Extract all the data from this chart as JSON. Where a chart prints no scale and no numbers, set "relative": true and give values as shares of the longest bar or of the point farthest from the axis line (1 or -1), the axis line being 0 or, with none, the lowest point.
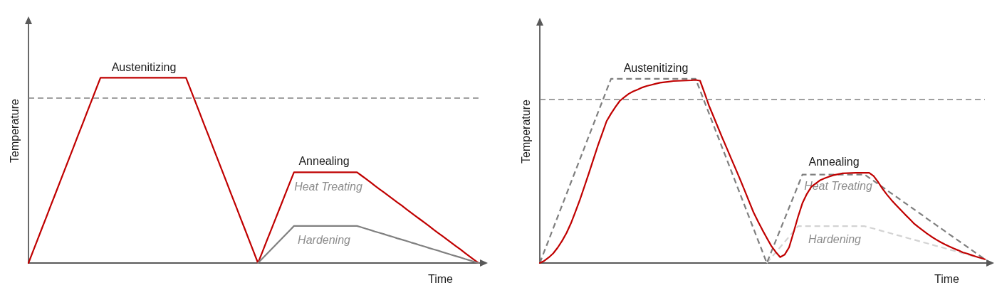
{
  "chart_data": [
    {
      "type": "line",
      "relative": true,
      "xlabel": "Time",
      "ylabel": "Temperature",
      "grid": false,
      "marker": "none",
      "categories": [
        null,
        null,
        null,
        null,
        null,
        null,
        null,
        null,
        null,
        null,
        null,
        null,
        null,
        null,
        null,
        null,
        null,
        null,
        null,
        null,
        null,
        null,
        null,
        null,
        null,
        null,
        null,
        null,
        null,
        null,
        null,
        null,
        null,
        null,
        null,
        null,
        null,
        null,
        null,
        null,
        null,
        null,
        null,
        null,
        null,
        null,
        null,
        null,
        null,
        null,
        null,
        null,
        null,
        null,
        null,
        null,
        null,
        null,
        null,
        null,
        null,
        null,
        null,
        null,
        null,
        null,
        null,
        null,
        null,
        null,
        null,
        null,
        null,
        null,
        null,
        null,
        null,
        null,
        null,
        null,
        null,
        null,
        null,
        null,
        null,
        null,
        null,
        null,
        null,
        null,
        null,
        null,
        null,
        null,
        null,
        null,
        null,
        null,
        null,
        null,
        null
      ],
      "series": [
        {
          "color": "#c00000",
          "values": [
            0,
            0.063,
            0.125,
            0.188,
            0.25,
            0.313,
            0.375,
            0.438,
            0.5,
            0.563,
            0.625,
            0.688,
            0.75,
            0.813,
            0.875,
            0.938,
            1,
            1,
            1,
            1,
            1,
            1,
            1,
            1,
            1,
            1,
            1,
            1,
            1,
            1,
            1,
            1,
            1,
            1,
            1,
            1,
            0.938,
            0.875,
            0.813,
            0.75,
            0.688,
            0.625,
            0.563,
            0.5,
            0.438,
            0.375,
            0.313,
            0.25,
            0.188,
            0.125,
            0.063,
            0,
            0.061,
            0.123,
            0.184,
            0.245,
            0.306,
            0.368,
            0.429,
            0.49,
            0.49,
            0.49,
            0.49,
            0.49,
            0.49,
            0.49,
            0.49,
            0.49,
            0.49,
            0.49,
            0.49,
            0.49,
            0.49,
            0.49,
            0.472,
            0.454,
            0.436,
            0.417,
            0.399,
            0.381,
            0.363,
            0.345,
            0.327,
            0.309,
            0.29,
            0.272,
            0.254,
            0.236,
            0.218,
            0.2,
            0.181,
            0.163,
            0.145,
            0.127,
            0.109,
            0.091,
            0.073,
            0.054,
            0.036,
            0.018,
            0
          ]
        },
        {
          "color": "#808080",
          "values": [
            null,
            null,
            null,
            null,
            null,
            null,
            null,
            null,
            null,
            null,
            null,
            null,
            null,
            null,
            null,
            null,
            null,
            null,
            null,
            null,
            null,
            null,
            null,
            null,
            null,
            null,
            null,
            null,
            null,
            null,
            null,
            null,
            null,
            null,
            null,
            null,
            null,
            null,
            null,
            null,
            null,
            null,
            null,
            null,
            null,
            null,
            null,
            null,
            null,
            null,
            null,
            0,
            0.025,
            0.05,
            0.075,
            0.1,
            0.125,
            0.15,
            0.175,
            0.2,
            0.2,
            0.2,
            0.2,
            0.2,
            0.2,
            0.2,
            0.2,
            0.2,
            0.2,
            0.2,
            0.2,
            0.2,
            0.2,
            0.2,
            0.193,
            0.185,
            0.178,
            0.17,
            0.163,
            0.156,
            0.148,
            0.141,
            0.133,
            0.126,
            0.119,
            0.111,
            0.104,
            0.096,
            0.089,
            0.081,
            0.074,
            0.067,
            0.059,
            0.052,
            0.044,
            0.037,
            0.03,
            0.022,
            0.015,
            0.007,
            0
          ]
        }
      ],
      "ref_lines": [
        {
          "axis": "y",
          "value": 0.89,
          "color": "#808080",
          "line_style": "dashed"
        }
      ],
      "annotations": [
        "Austenitizing",
        "Annealing",
        "Heat Treating",
        "Hardening"
      ]
    },
    {
      "type": "line",
      "relative": true,
      "xlabel": "Time",
      "ylabel": "Temperature",
      "grid": false,
      "marker": "none",
      "categories": [
        null,
        null,
        null,
        null,
        null,
        null,
        null,
        null,
        null,
        null,
        null,
        null,
        null,
        null,
        null,
        null,
        null,
        null,
        null,
        null,
        null,
        null,
        null,
        null,
        null,
        null,
        null,
        null,
        null,
        null,
        null,
        null,
        null,
        null,
        null,
        null,
        null,
        null,
        null,
        null,
        null,
        null,
        null,
        null,
        null,
        null,
        null,
        null,
        null,
        null,
        null,
        null,
        null,
        null,
        null,
        null,
        null,
        null,
        null,
        null,
        null,
        null,
        null,
        null,
        null,
        null,
        null,
        null,
        null,
        null,
        null,
        null,
        null,
        null,
        null,
        null,
        null,
        null,
        null,
        null,
        null,
        null,
        null,
        null,
        null,
        null,
        null,
        null,
        null,
        null,
        null,
        null,
        null,
        null,
        null,
        null,
        null,
        null,
        null,
        null,
        null
      ],
      "series": [
        {
          "color": "#d3d3d3",
          "line_style": "dashed",
          "values": [
            null,
            null,
            null,
            null,
            null,
            null,
            null,
            null,
            null,
            null,
            null,
            null,
            null,
            null,
            null,
            null,
            null,
            null,
            null,
            null,
            null,
            null,
            null,
            null,
            null,
            null,
            null,
            null,
            null,
            null,
            null,
            null,
            null,
            null,
            null,
            null,
            null,
            null,
            null,
            null,
            null,
            null,
            null,
            null,
            null,
            null,
            null,
            null,
            null,
            null,
            null,
            0,
            0.029,
            0.057,
            0.086,
            0.114,
            0.143,
            0.171,
            0.2,
            0.2,
            0.2,
            0.2,
            0.2,
            0.2,
            0.2,
            0.2,
            0.2,
            0.2,
            0.2,
            0.2,
            0.2,
            0.2,
            0.2,
            0.2,
            0.193,
            0.187,
            0.18,
            0.173,
            0.167,
            0.16,
            0.153,
            0.147,
            0.14,
            0.133,
            0.127,
            0.12,
            0.113,
            0.107,
            0.1,
            0.093,
            0.087,
            0.08,
            0.073,
            0.067,
            0.06,
            0.053,
            0.047,
            0.04,
            0.033,
            0.027,
            0.02
          ]
        },
        {
          "color": "#7f7f7f",
          "line_style": "dashed",
          "values": [
            0,
            0.063,
            0.125,
            0.188,
            0.25,
            0.313,
            0.375,
            0.438,
            0.5,
            0.563,
            0.625,
            0.688,
            0.75,
            0.813,
            0.875,
            0.938,
            1,
            1,
            1,
            1,
            1,
            1,
            1,
            1,
            1,
            1,
            1,
            1,
            1,
            1,
            1,
            1,
            1,
            1,
            1,
            1,
            0.938,
            0.875,
            0.813,
            0.75,
            0.688,
            0.625,
            0.563,
            0.5,
            0.438,
            0.375,
            0.313,
            0.25,
            0.188,
            0.125,
            0.063,
            0,
            0.06,
            0.12,
            0.18,
            0.24,
            0.3,
            0.36,
            0.42,
            0.48,
            0.48,
            0.48,
            0.48,
            0.48,
            0.48,
            0.48,
            0.48,
            0.48,
            0.48,
            0.48,
            0.48,
            0.48,
            0.48,
            0.48,
            0.463,
            0.446,
            0.429,
            0.412,
            0.395,
            0.378,
            0.361,
            0.344,
            0.327,
            0.31,
            0.293,
            0.276,
            0.259,
            0.241,
            0.224,
            0.207,
            0.19,
            0.173,
            0.156,
            0.139,
            0.122,
            0.105,
            0.088,
            0.071,
            0.054,
            0.037,
            0.02
          ]
        },
        {
          "color": "#c00000",
          "line_style": "solid",
          "values": [
            0,
            0.012,
            0.03,
            0.052,
            0.083,
            0.12,
            0.163,
            0.216,
            0.278,
            0.343,
            0.414,
            0.486,
            0.56,
            0.634,
            0.702,
            0.77,
            0.811,
            0.848,
            0.881,
            0.901,
            0.919,
            0.932,
            0.942,
            0.953,
            0.961,
            0.967,
            0.973,
            0.979,
            0.982,
            0.985,
            0.988,
            0.989,
            0.99,
            0.991,
            0.992,
            0.994,
            0.99,
            0.924,
            0.855,
            0.797,
            0.738,
            0.68,
            0.624,
            0.567,
            0.511,
            0.454,
            0.395,
            0.335,
            0.276,
            0.227,
            0.18,
            0.136,
            0.093,
            0.06,
            0.032,
            0.045,
            0.085,
            0.165,
            0.25,
            0.325,
            0.375,
            0.414,
            0.432,
            0.45,
            0.46,
            0.469,
            0.477,
            0.482,
            0.487,
            0.488,
            0.489,
            0.49,
            0.49,
            0.49,
            0.49,
            0.472,
            0.44,
            0.403,
            0.371,
            0.342,
            0.316,
            0.29,
            0.265,
            0.241,
            0.216,
            0.196,
            0.178,
            0.16,
            0.143,
            0.128,
            0.114,
            0.101,
            0.09,
            0.079,
            0.069,
            0.058,
            0.051,
            0.043,
            0.035,
            0.028,
            0.02
          ]
        }
      ],
      "ref_lines": [
        {
          "axis": "y",
          "value": 0.89,
          "color": "#808080",
          "line_style": "dashed"
        }
      ],
      "annotations": [
        "Austenitizing",
        "Annealing",
        "Heat Treating",
        "Hardening"
      ]
    }
  ]
}
